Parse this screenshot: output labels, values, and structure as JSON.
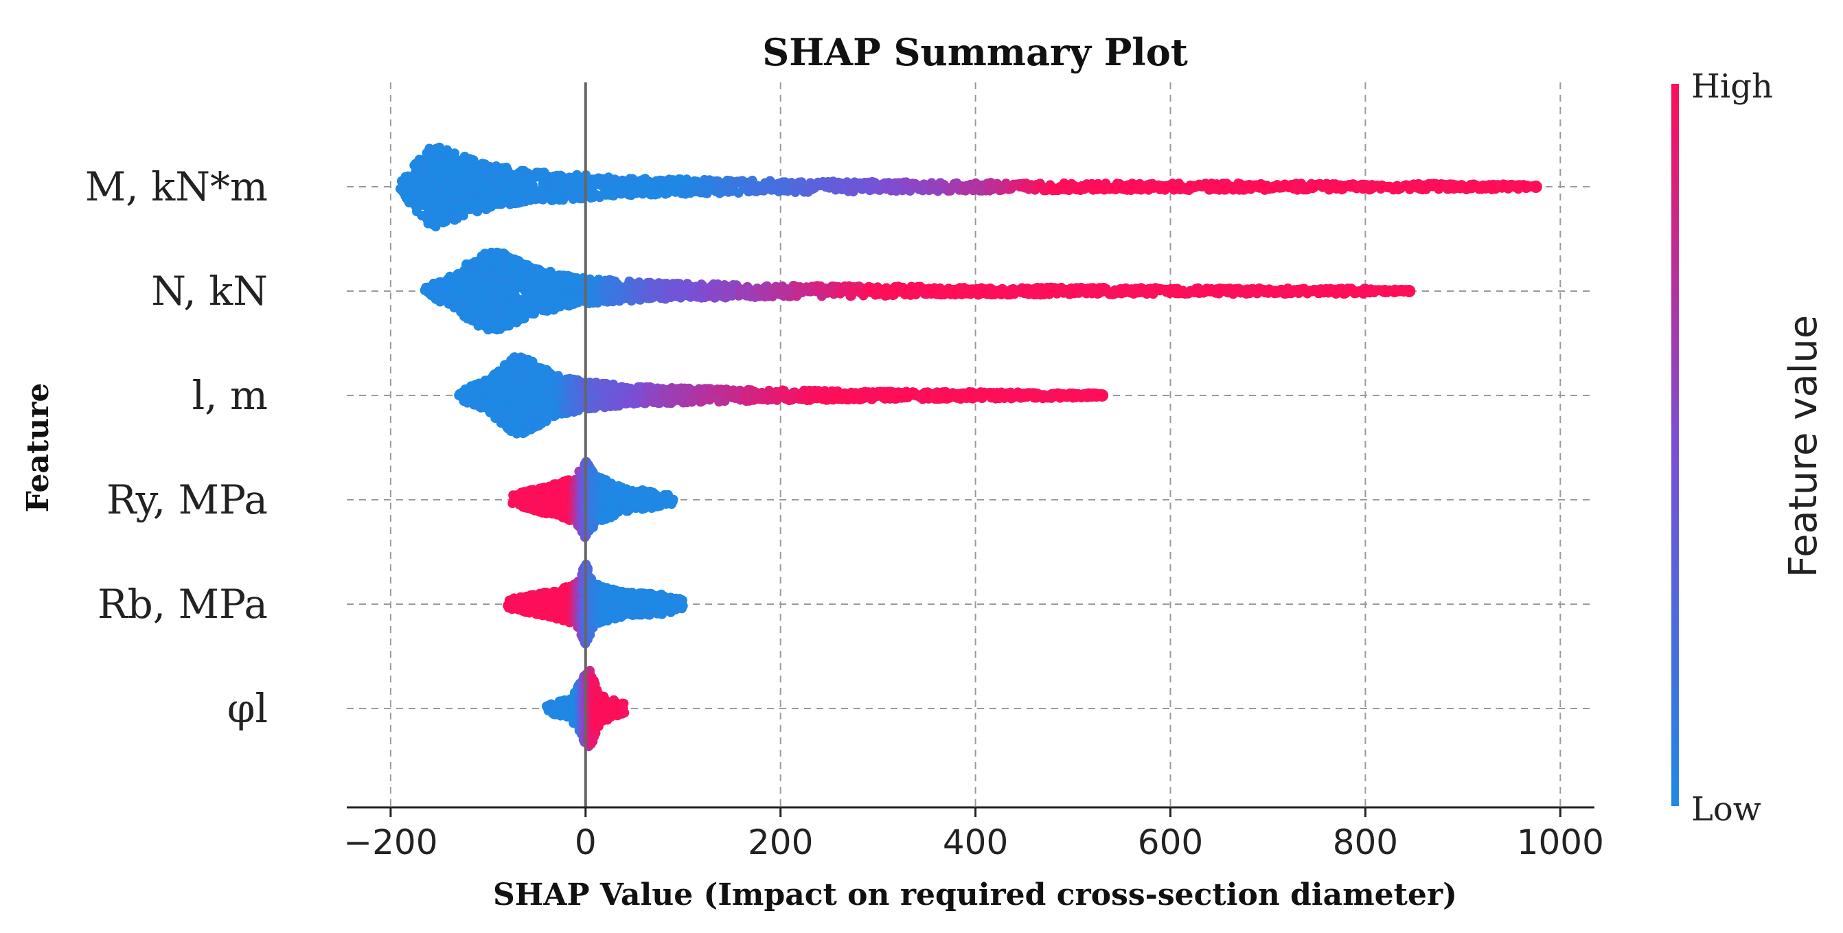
{
  "chart_data": {
    "type": "scatter",
    "subtype": "shap_beeswarm",
    "title": "SHAP Summary Plot",
    "xlabel": "SHAP Value (Impact on required cross-section diameter)",
    "ylabel": "Feature",
    "xlim": [
      -245,
      1035
    ],
    "xticks": [
      -200,
      0,
      200,
      400,
      600,
      800,
      1000
    ],
    "xtick_labels": [
      "−200",
      "0",
      "200",
      "400",
      "600",
      "800",
      "1000"
    ],
    "grid": true,
    "zero_line": 0,
    "colorbar": {
      "label": "Feature value",
      "high_label": "High",
      "low_label": "Low",
      "low_color": "#1E88E5",
      "high_color": "#FF0D57"
    },
    "features": [
      {
        "name": "M, kN*m",
        "min": -190,
        "max": 975,
        "spread": 0.95,
        "shape": [
          [
            -190,
            0.18
          ],
          [
            -170,
            0.7
          ],
          [
            -160,
            1.0
          ],
          [
            -150,
            1.0
          ],
          [
            -130,
            0.8
          ],
          [
            -100,
            0.55
          ],
          [
            -60,
            0.4
          ],
          [
            -20,
            0.32
          ],
          [
            50,
            0.22
          ],
          [
            150,
            0.16
          ],
          [
            300,
            0.12
          ],
          [
            500,
            0.09
          ],
          [
            800,
            0.08
          ],
          [
            950,
            0.07
          ],
          [
            975,
            0.04
          ]
        ],
        "color_stops": [
          [
            -200,
            0
          ],
          [
            100,
            0
          ],
          [
            250,
            0.35
          ],
          [
            420,
            0.75
          ],
          [
            480,
            1
          ],
          [
            1000,
            1
          ]
        ],
        "outliers": [
          965,
          975
        ]
      },
      {
        "name": "N, kN",
        "min": -165,
        "max": 845,
        "spread": 0.95,
        "shape": [
          [
            -165,
            0.12
          ],
          [
            -140,
            0.35
          ],
          [
            -115,
            0.8
          ],
          [
            -100,
            1.0
          ],
          [
            -85,
            0.95
          ],
          [
            -60,
            0.65
          ],
          [
            -30,
            0.45
          ],
          [
            0,
            0.32
          ],
          [
            80,
            0.2
          ],
          [
            200,
            0.14
          ],
          [
            400,
            0.1
          ],
          [
            600,
            0.08
          ],
          [
            800,
            0.07
          ],
          [
            810,
            0.04
          ]
        ],
        "color_stops": [
          [
            -200,
            0
          ],
          [
            0,
            0
          ],
          [
            80,
            0.4
          ],
          [
            250,
            0.85
          ],
          [
            300,
            1
          ],
          [
            1000,
            1
          ]
        ],
        "outliers": [
          820,
          830,
          845
        ]
      },
      {
        "name": "l, m",
        "min": -130,
        "max": 530,
        "spread": 0.95,
        "shape": [
          [
            -130,
            0.12
          ],
          [
            -100,
            0.4
          ],
          [
            -80,
            0.85
          ],
          [
            -70,
            1.0
          ],
          [
            -55,
            0.85
          ],
          [
            -30,
            0.5
          ],
          [
            0,
            0.35
          ],
          [
            50,
            0.22
          ],
          [
            150,
            0.15
          ],
          [
            300,
            0.1
          ],
          [
            450,
            0.08
          ],
          [
            510,
            0.06
          ]
        ],
        "color_stops": [
          [
            -200,
            0
          ],
          [
            -30,
            0
          ],
          [
            0,
            0.3
          ],
          [
            80,
            0.6
          ],
          [
            200,
            0.9
          ],
          [
            250,
            1
          ],
          [
            1000,
            1
          ]
        ],
        "outliers": [
          530
        ]
      },
      {
        "name": "Ry, MPa",
        "min": -75,
        "max": 90,
        "spread": 0.95,
        "shape": [
          [
            -75,
            0.12
          ],
          [
            -40,
            0.35
          ],
          [
            -10,
            0.55
          ],
          [
            0,
            1.0
          ],
          [
            10,
            0.6
          ],
          [
            40,
            0.3
          ],
          [
            70,
            0.2
          ],
          [
            90,
            0.1
          ]
        ],
        "color_stops": [
          [
            -100,
            1
          ],
          [
            -15,
            1
          ],
          [
            -5,
            0.6
          ],
          [
            0,
            0.4
          ],
          [
            8,
            0.15
          ],
          [
            20,
            0
          ],
          [
            100,
            0
          ]
        ],
        "outliers": []
      },
      {
        "name": "Rb, MPa",
        "min": -80,
        "max": 100,
        "spread": 0.95,
        "shape": [
          [
            -80,
            0.12
          ],
          [
            -40,
            0.3
          ],
          [
            -10,
            0.5
          ],
          [
            0,
            1.0
          ],
          [
            10,
            0.5
          ],
          [
            40,
            0.3
          ],
          [
            80,
            0.25
          ],
          [
            100,
            0.12
          ]
        ],
        "color_stops": [
          [
            -100,
            1
          ],
          [
            -15,
            1
          ],
          [
            -5,
            0.6
          ],
          [
            0,
            0.3
          ],
          [
            10,
            0.1
          ],
          [
            20,
            0
          ],
          [
            100,
            0
          ]
        ],
        "outliers": []
      },
      {
        "name": "φl",
        "min": -40,
        "max": 40,
        "spread": 0.95,
        "shape": [
          [
            -40,
            0.1
          ],
          [
            -15,
            0.25
          ],
          [
            0,
            0.9
          ],
          [
            5,
            1.0
          ],
          [
            15,
            0.35
          ],
          [
            40,
            0.12
          ]
        ],
        "color_stops": [
          [
            -50,
            0
          ],
          [
            -8,
            0
          ],
          [
            0,
            0.55
          ],
          [
            5,
            0.85
          ],
          [
            12,
            1
          ],
          [
            50,
            1
          ]
        ],
        "outliers": []
      }
    ]
  }
}
